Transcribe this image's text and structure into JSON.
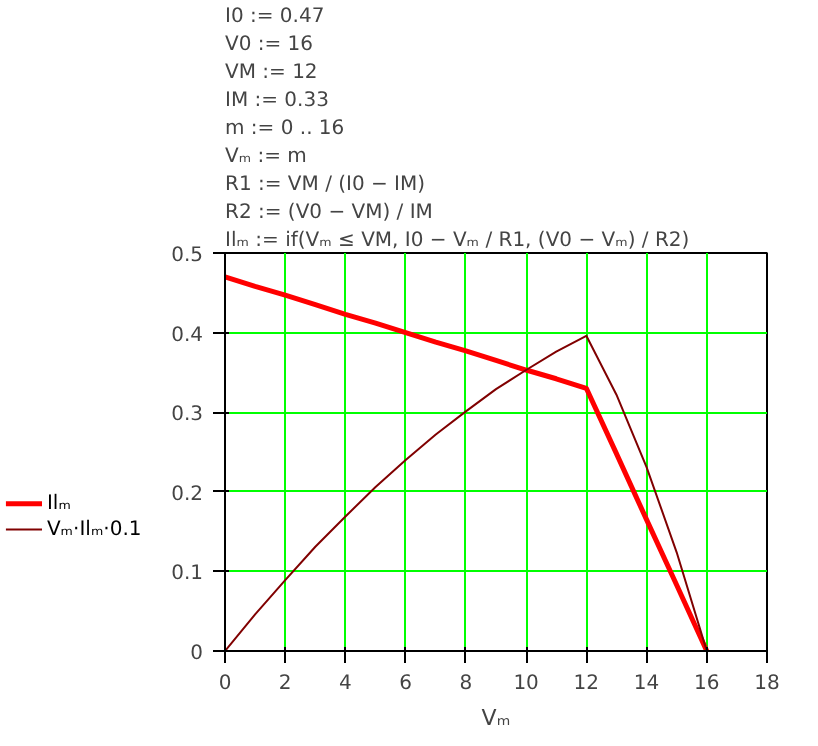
{
  "chart_data": {
    "type": "line",
    "annotations": [
      "I0 := 0.47",
      "V0 := 16",
      "VM := 12",
      "IM := 0.33",
      "m := 0 .. 16",
      "Vₘ := m",
      "R1 := VM / (I0 − IM)",
      "R2 := (V0 − VM) / IM",
      "Ilₘ := if(Vₘ ≤ VM, I0 − Vₘ / R1, (V0 − Vₘ) / R2)"
    ],
    "xlabel": "Vₘ",
    "x": [
      0,
      1,
      2,
      3,
      4,
      5,
      6,
      7,
      8,
      9,
      10,
      11,
      12,
      13,
      14,
      15,
      16
    ],
    "series": [
      {
        "name": "Ilₘ",
        "color": "#ff0000",
        "values": [
          0.47,
          0.458,
          0.447,
          0.435,
          0.423,
          0.412,
          0.4,
          0.388,
          0.377,
          0.365,
          0.353,
          0.342,
          0.33,
          0.248,
          0.165,
          0.083,
          0
        ]
      },
      {
        "name": "Vₘ·Ilₘ·0.1",
        "color": "#800000",
        "values": [
          0,
          0.046,
          0.089,
          0.131,
          0.169,
          0.206,
          0.24,
          0.272,
          0.301,
          0.329,
          0.353,
          0.376,
          0.396,
          0.322,
          0.231,
          0.124,
          0
        ]
      }
    ],
    "xlim": [
      0,
      18
    ],
    "xticks": [
      0,
      2,
      4,
      6,
      8,
      10,
      12,
      14,
      16,
      18
    ],
    "ylim": [
      0,
      0.5
    ],
    "yticks": [
      0,
      0.1,
      0.2,
      0.3,
      0.4,
      0.5
    ],
    "grid": true,
    "legend": "left",
    "line_style": "solid",
    "marker": "none"
  }
}
